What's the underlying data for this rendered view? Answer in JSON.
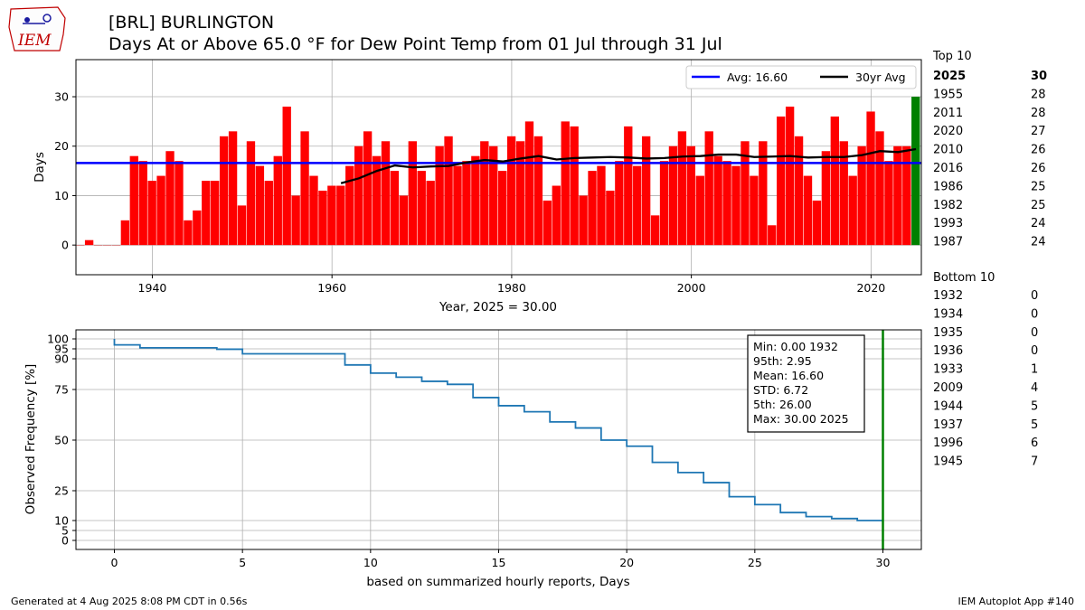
{
  "header": {
    "station": "[BRL] BURLINGTON",
    "subtitle": "Days At or Above 65.0 °F for Dew Point Temp from 01 Jul through 31 Jul",
    "logo_text": "IEM"
  },
  "colors": {
    "bar": "#ff0000",
    "bar_current": "#008000",
    "avg_line": "#0000ff",
    "avg30_line": "#000000",
    "cdf_line": "#1f77b4",
    "grid": "#b0b0b0"
  },
  "chart_data": [
    {
      "type": "bar",
      "ylabel": "Days",
      "xlabel": "Year, 2025 = 30.00",
      "xlim": [
        1931.5,
        2025.6
      ],
      "ylim": [
        -6,
        37.5
      ],
      "xticks": [
        1940,
        1960,
        1980,
        2000,
        2020
      ],
      "yticks": [
        0,
        10,
        20,
        30
      ],
      "grid": true,
      "legend_position": "top-right",
      "years": [
        1932,
        1933,
        1934,
        1935,
        1936,
        1937,
        1938,
        1939,
        1940,
        1941,
        1942,
        1943,
        1944,
        1945,
        1946,
        1947,
        1948,
        1949,
        1950,
        1951,
        1952,
        1953,
        1954,
        1955,
        1956,
        1957,
        1958,
        1959,
        1960,
        1961,
        1962,
        1963,
        1964,
        1965,
        1966,
        1967,
        1968,
        1969,
        1970,
        1971,
        1972,
        1973,
        1974,
        1975,
        1976,
        1977,
        1978,
        1979,
        1980,
        1981,
        1982,
        1983,
        1984,
        1985,
        1986,
        1987,
        1988,
        1989,
        1990,
        1991,
        1992,
        1993,
        1994,
        1995,
        1996,
        1997,
        1998,
        1999,
        2000,
        2001,
        2002,
        2003,
        2004,
        2005,
        2006,
        2007,
        2008,
        2009,
        2010,
        2011,
        2012,
        2013,
        2014,
        2015,
        2016,
        2017,
        2018,
        2019,
        2020,
        2021,
        2022,
        2023,
        2024,
        2025
      ],
      "values": [
        0,
        1,
        0,
        0,
        0,
        5,
        18,
        17,
        13,
        14,
        19,
        17,
        5,
        7,
        13,
        13,
        22,
        23,
        8,
        21,
        16,
        13,
        18,
        28,
        10,
        23,
        14,
        11,
        12,
        12,
        16,
        20,
        23,
        18,
        21,
        15,
        10,
        21,
        15,
        13,
        20,
        22,
        16,
        17,
        18,
        21,
        20,
        15,
        22,
        21,
        25,
        22,
        9,
        12,
        25,
        24,
        10,
        15,
        16,
        11,
        17,
        24,
        16,
        22,
        6,
        17,
        20,
        23,
        20,
        14,
        23,
        18,
        17,
        16,
        21,
        14,
        21,
        4,
        26,
        28,
        22,
        14,
        9,
        19,
        26,
        21,
        14,
        20,
        27,
        23,
        17,
        20,
        20,
        30
      ],
      "highlight_year": 2025,
      "series": [
        {
          "name": "Avg: 16.60",
          "type": "hline",
          "value": 16.6
        },
        {
          "name": "30yr Avg",
          "type": "line",
          "x": [
            1961,
            1963,
            1965,
            1967,
            1969,
            1971,
            1973,
            1975,
            1977,
            1979,
            1981,
            1983,
            1985,
            1987,
            1989,
            1991,
            1993,
            1995,
            1997,
            1999,
            2001,
            2003,
            2005,
            2007,
            2009,
            2011,
            2013,
            2015,
            2017,
            2019,
            2021,
            2023,
            2025
          ],
          "y": [
            12.5,
            13.5,
            15.0,
            16.1,
            15.7,
            15.9,
            16.0,
            16.7,
            17.2,
            16.9,
            17.5,
            18.0,
            17.3,
            17.6,
            17.7,
            17.8,
            17.7,
            17.5,
            17.6,
            17.9,
            18.0,
            18.3,
            18.3,
            17.8,
            17.9,
            18.0,
            17.7,
            17.8,
            17.8,
            18.2,
            19.0,
            18.8,
            19.4
          ]
        }
      ]
    },
    {
      "type": "line",
      "xlabel": "based on summarized hourly reports, Days",
      "ylabel": "Observed Frequency [%]",
      "xlim": [
        -1.5,
        31.5
      ],
      "ylim": [
        -1.5,
        101
      ],
      "xticks": [
        0,
        5,
        10,
        15,
        20,
        25,
        30
      ],
      "yticks": [
        0,
        5,
        10,
        25,
        50,
        75,
        90,
        95,
        100
      ],
      "grid": true,
      "marker_x": 30,
      "series": [
        {
          "name": "",
          "x": [
            0,
            0,
            1,
            4,
            5,
            9,
            10,
            11,
            12,
            13,
            14,
            15,
            16,
            17,
            18,
            19,
            20,
            21,
            22,
            23,
            24,
            25,
            26,
            27,
            28,
            29,
            30
          ],
          "y": [
            100,
            97,
            95.5,
            94.8,
            92.5,
            87,
            83,
            81,
            79,
            77.5,
            71,
            67,
            64,
            59,
            56,
            50,
            47,
            39,
            34,
            29,
            22,
            18,
            14,
            12,
            11,
            10,
            9
          ]
        }
      ]
    }
  ],
  "stats_box": {
    "lines": [
      "Min: 0.00 1932",
      "95th: 2.95",
      "Mean: 16.60",
      "STD: 6.72",
      "5th: 26.00",
      "Max: 30.00 2025"
    ]
  },
  "top10": {
    "heading": "Top 10",
    "rows": [
      [
        "2025",
        "30"
      ],
      [
        "1955",
        "28"
      ],
      [
        "2011",
        "28"
      ],
      [
        "2020",
        "27"
      ],
      [
        "2010",
        "26"
      ],
      [
        "2016",
        "26"
      ],
      [
        "1986",
        "25"
      ],
      [
        "1982",
        "25"
      ],
      [
        "1993",
        "24"
      ],
      [
        "1987",
        "24"
      ]
    ]
  },
  "bottom10": {
    "heading": "Bottom 10",
    "rows": [
      [
        "1932",
        "0"
      ],
      [
        "1934",
        "0"
      ],
      [
        "1935",
        "0"
      ],
      [
        "1936",
        "0"
      ],
      [
        "1933",
        "1"
      ],
      [
        "2009",
        "4"
      ],
      [
        "1944",
        "5"
      ],
      [
        "1937",
        "5"
      ],
      [
        "1996",
        "6"
      ],
      [
        "1945",
        "7"
      ]
    ]
  },
  "footer": {
    "generated": "Generated at 4 Aug 2025 8:08 PM CDT in 0.56s",
    "app": "IEM Autoplot App #140"
  }
}
